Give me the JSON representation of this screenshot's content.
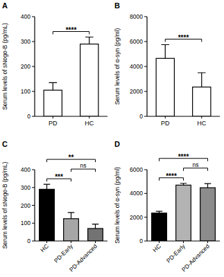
{
  "chart_data": [
    {
      "type": "bar",
      "title": "A",
      "y_label": "Serum levels of sNogo-B (pg/mL)",
      "categories": [
        "PD",
        "HC"
      ],
      "values": [
        105,
        290
      ],
      "errors": [
        30,
        28
      ],
      "color": "#ffffff",
      "ylim": [
        0,
        400
      ],
      "yticks": [
        0,
        100,
        200,
        300,
        400
      ],
      "annotations": [
        {
          "between": [
            "PD",
            "HC"
          ],
          "text": "****"
        }
      ]
    },
    {
      "type": "bar",
      "title": "B",
      "y_label": "Serum levels of α-syn (pg/ml)",
      "categories": [
        "PD",
        "HC"
      ],
      "values": [
        4650,
        2350
      ],
      "errors": [
        1100,
        1150
      ],
      "color": "#ffffff",
      "ylim": [
        0,
        8000
      ],
      "yticks": [
        0,
        2000,
        4000,
        6000,
        8000
      ],
      "annotations": [
        {
          "between": [
            "PD",
            "HC"
          ],
          "text": "****"
        }
      ]
    },
    {
      "type": "bar",
      "title": "C",
      "y_label": "Serum levels of sNogo-B (pg/mL)",
      "categories": [
        "HC",
        "PD-Early",
        "PD-Advanced"
      ],
      "values": [
        290,
        125,
        70
      ],
      "errors": [
        28,
        35,
        25
      ],
      "colors": [
        "#000000",
        "#a6a6a6",
        "#737373"
      ],
      "ylim": [
        0,
        400
      ],
      "yticks": [
        0,
        100,
        200,
        300,
        400
      ],
      "annotations": [
        {
          "between": [
            "HC",
            "PD-Early"
          ],
          "text": "***"
        },
        {
          "between": [
            "PD-Early",
            "PD-Advanced"
          ],
          "text": "ns"
        },
        {
          "between": [
            "HC",
            "PD-Advanced"
          ],
          "text": "**"
        }
      ]
    },
    {
      "type": "bar",
      "title": "D",
      "y_label": "Serum levels of α-syn (pg/ml)",
      "categories": [
        "HC",
        "PD-Early",
        "PD-Advanced"
      ],
      "values": [
        2350,
        4700,
        4480
      ],
      "errors": [
        150,
        150,
        350
      ],
      "colors": [
        "#000000",
        "#b3b3b3",
        "#8c8c8c"
      ],
      "ylim": [
        0,
        6000
      ],
      "yticks": [
        0,
        2000,
        4000,
        6000
      ],
      "annotations": [
        {
          "between": [
            "HC",
            "PD-Early"
          ],
          "text": "****"
        },
        {
          "between": [
            "PD-Early",
            "PD-Advanced"
          ],
          "text": "ns"
        },
        {
          "between": [
            "HC",
            "PD-Advanced"
          ],
          "text": "****"
        }
      ]
    }
  ]
}
